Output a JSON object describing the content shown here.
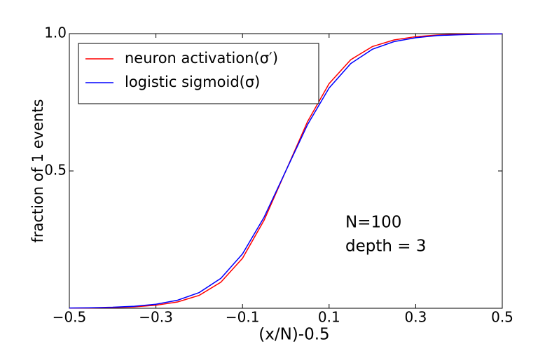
{
  "chart_data": {
    "type": "line",
    "xlabel": "(x/N)-0.5",
    "ylabel": "fraction of 1 events",
    "annotations": [
      "N=100",
      "depth = 3"
    ],
    "x": [
      -0.5,
      -0.45,
      -0.4,
      -0.35,
      -0.3,
      -0.25,
      -0.2,
      -0.15,
      -0.1,
      -0.05,
      0,
      0.05,
      0.1,
      0.15,
      0.2,
      0.25,
      0.3,
      0.35,
      0.4,
      0.45,
      0.5
    ],
    "series": [
      {
        "name": "neuron activation(σ′)",
        "color": "#ff0000",
        "values": [
          0.0006,
          0.0012,
          0.0025,
          0.0052,
          0.011,
          0.023,
          0.047,
          0.095,
          0.182,
          0.321,
          0.5,
          0.679,
          0.818,
          0.905,
          0.953,
          0.977,
          0.989,
          0.995,
          0.998,
          0.999,
          0.999
        ]
      },
      {
        "name": "logistic sigmoid(σ)",
        "color": "#0000ff",
        "values": [
          0.0009,
          0.0018,
          0.0037,
          0.0074,
          0.0148,
          0.0293,
          0.0573,
          0.109,
          0.198,
          0.332,
          0.5,
          0.668,
          0.802,
          0.891,
          0.943,
          0.971,
          0.985,
          0.993,
          0.996,
          0.998,
          0.999
        ]
      }
    ],
    "xlim": [
      -0.5,
      0.5
    ],
    "ylim": [
      0,
      1
    ],
    "xticks": [
      {
        "value": -0.5,
        "label": "−0.5"
      },
      {
        "value": -0.3,
        "label": "−0.3"
      },
      {
        "value": -0.1,
        "label": "−0.1"
      },
      0.1,
      0.3,
      0.5
    ],
    "yticks": [
      0.5,
      {
        "value": 1,
        "label": "1.0"
      }
    ],
    "legend": "upper left",
    "grid": false
  }
}
